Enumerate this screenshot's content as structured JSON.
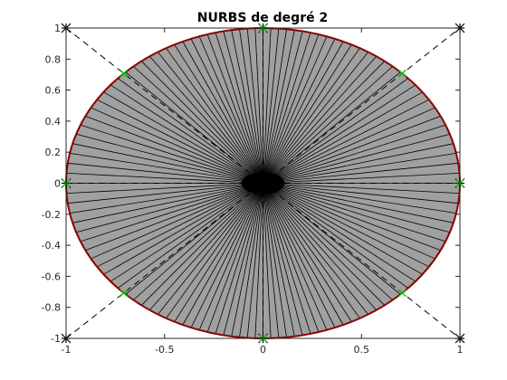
{
  "chart_data": {
    "type": "scatter",
    "title": "NURBS de degré 2",
    "xlabel": "",
    "ylabel": "",
    "xlim": [
      -1,
      1
    ],
    "ylim": [
      -1,
      1
    ],
    "x_ticks": [
      -1,
      -0.5,
      0,
      0.5,
      1
    ],
    "x_tick_labels": [
      "-1",
      "-0.5",
      "0",
      "0.5",
      "1"
    ],
    "y_ticks": [
      -1,
      -0.8,
      -0.6,
      -0.4,
      -0.2,
      0,
      0.2,
      0.4,
      0.6,
      0.8,
      1
    ],
    "y_tick_labels": [
      "-1",
      "-0.8",
      "-0.6",
      "-0.4",
      "-0.2",
      "0",
      "0.2",
      "0.4",
      "0.6",
      "0.8",
      "1"
    ],
    "grid": false,
    "radial_line_count": 120,
    "series": [
      {
        "role": "nurbs-curve",
        "color": "#8b0000",
        "fill": "#a0a0a0",
        "shape": "unit circle"
      },
      {
        "role": "control-polygon",
        "color": "#000000",
        "linestyle": "dashed",
        "marker": "star",
        "points": [
          [
            1,
            0
          ],
          [
            1,
            1
          ],
          [
            0,
            1
          ],
          [
            -1,
            1
          ],
          [
            -1,
            0
          ],
          [
            -1,
            -1
          ],
          [
            0,
            -1
          ],
          [
            1,
            -1
          ],
          [
            1,
            0
          ]
        ]
      },
      {
        "role": "curve-points",
        "color": "#00cc00",
        "marker": "x",
        "points": [
          [
            1,
            0
          ],
          [
            0.7071,
            0.7071
          ],
          [
            0,
            1
          ],
          [
            -0.7071,
            0.7071
          ],
          [
            -1,
            0
          ],
          [
            -0.7071,
            -0.7071
          ],
          [
            0,
            -1
          ],
          [
            0.7071,
            -0.7071
          ]
        ]
      }
    ]
  }
}
